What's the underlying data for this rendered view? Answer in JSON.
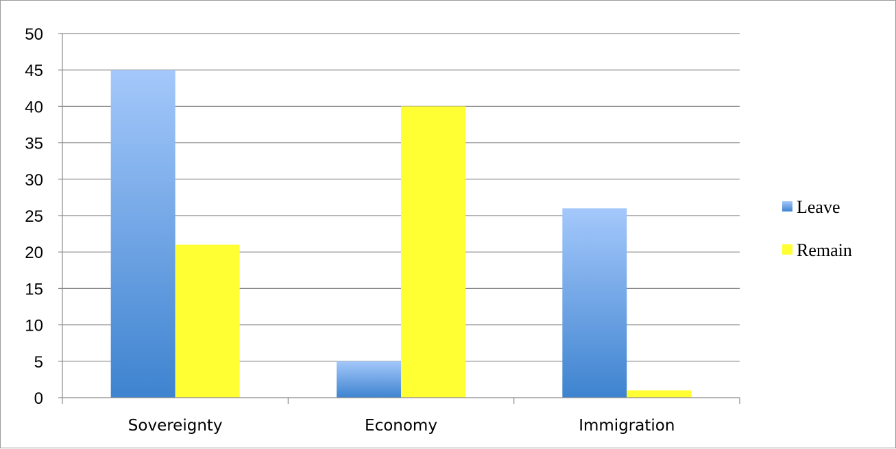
{
  "chart_data": {
    "type": "bar",
    "title": "",
    "xlabel": "",
    "ylabel": "",
    "categories": [
      "Sovereignty",
      "Economy",
      "Immigration"
    ],
    "series": [
      {
        "name": "Leave",
        "values": [
          45,
          5,
          26
        ]
      },
      {
        "name": "Remain",
        "values": [
          21,
          40,
          1
        ]
      }
    ],
    "ylim": [
      0,
      50
    ],
    "yticks": [
      0,
      5,
      10,
      15,
      20,
      25,
      30,
      35,
      40,
      45,
      50
    ],
    "grid": true,
    "legend_position": "right",
    "colors": {
      "Leave": "#7fb0f0",
      "Remain": "#ffff33"
    }
  }
}
